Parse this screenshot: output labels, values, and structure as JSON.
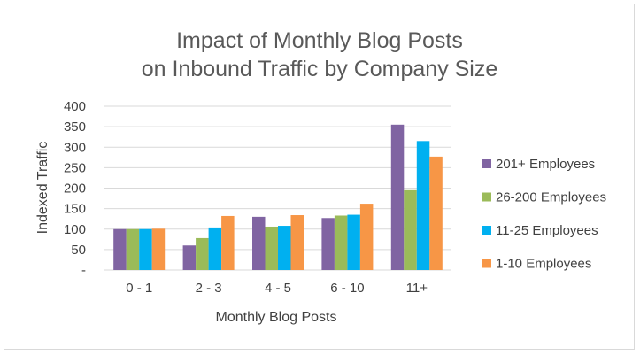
{
  "chart_data": {
    "type": "bar",
    "title_lines": [
      "Impact of Monthly Blog Posts",
      "on Inbound Traffic by Company Size"
    ],
    "xlabel": "Monthly Blog Posts",
    "ylabel": "Indexed Traffic",
    "categories": [
      "0 - 1",
      "2 - 3",
      "4 - 5",
      "6 - 10",
      "11+"
    ],
    "ylim": [
      0,
      400
    ],
    "y_ticks": [
      0,
      50,
      100,
      150,
      200,
      250,
      300,
      350,
      400
    ],
    "y_tick_labels": [
      "-",
      "50",
      "100",
      "150",
      "200",
      "250",
      "300",
      "350",
      "400"
    ],
    "grid": true,
    "legend_position": "right",
    "series": [
      {
        "name": "201+ Employees",
        "color": "#8064a2",
        "values": [
          100,
          60,
          130,
          127,
          355
        ]
      },
      {
        "name": "26-200 Employees",
        "color": "#9bbb59",
        "values": [
          100,
          78,
          106,
          133,
          195
        ]
      },
      {
        "name": "11-25 Employees",
        "color": "#00b0f0",
        "values": [
          100,
          104,
          108,
          135,
          315
        ]
      },
      {
        "name": "1-10 Employees",
        "color": "#f79646",
        "values": [
          101,
          132,
          134,
          162,
          277
        ]
      }
    ]
  }
}
